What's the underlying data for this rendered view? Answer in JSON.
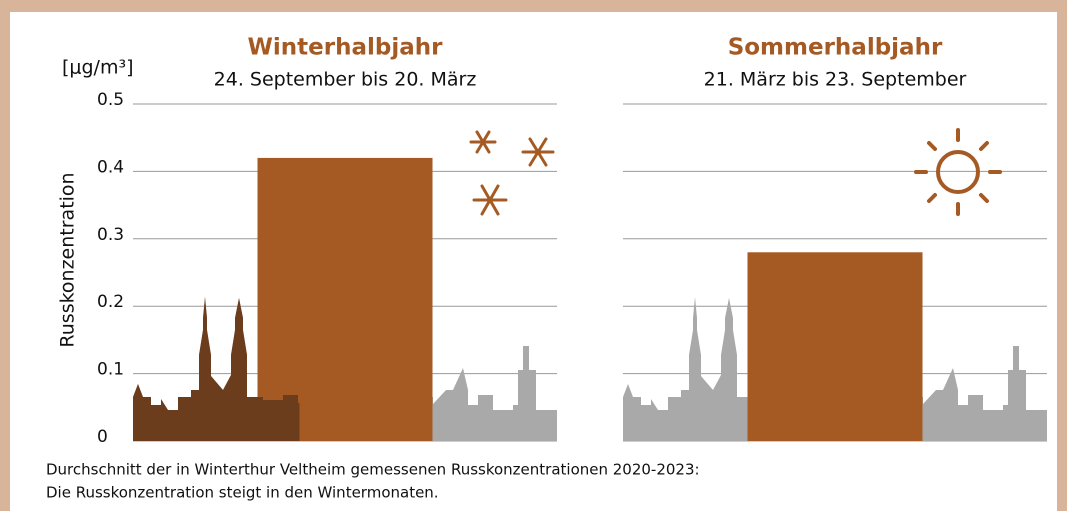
{
  "chart_data": [
    {
      "type": "bar",
      "title": "Winterhalbjahr",
      "subtitle": "24. September bis 20. März",
      "y_unit": "[μg/m³]",
      "y_label": "Russkonzentration",
      "values": [
        0.42
      ],
      "color": "#a55a24",
      "ylim": [
        0,
        0.5
      ],
      "yticks": [
        0,
        0.1,
        0.2,
        0.3,
        0.4,
        0.5
      ],
      "tick_labels": true,
      "grid": true
    },
    {
      "type": "bar",
      "title": "Sommerhalbjahr",
      "subtitle": "21. März bis 23. September",
      "values": [
        0.28
      ],
      "color": "#a55a24",
      "ylim": [
        0,
        0.5
      ],
      "yticks": [
        0,
        0.1,
        0.2,
        0.3,
        0.4,
        0.5
      ],
      "tick_labels": false,
      "grid": true
    }
  ],
  "caption": [
    "Durchschnitt der in Winterthur Veltheim gemessenen Russkonzentrationen 2020-2023:",
    "Die Russkonzentration steigt in den Wintermonaten."
  ]
}
